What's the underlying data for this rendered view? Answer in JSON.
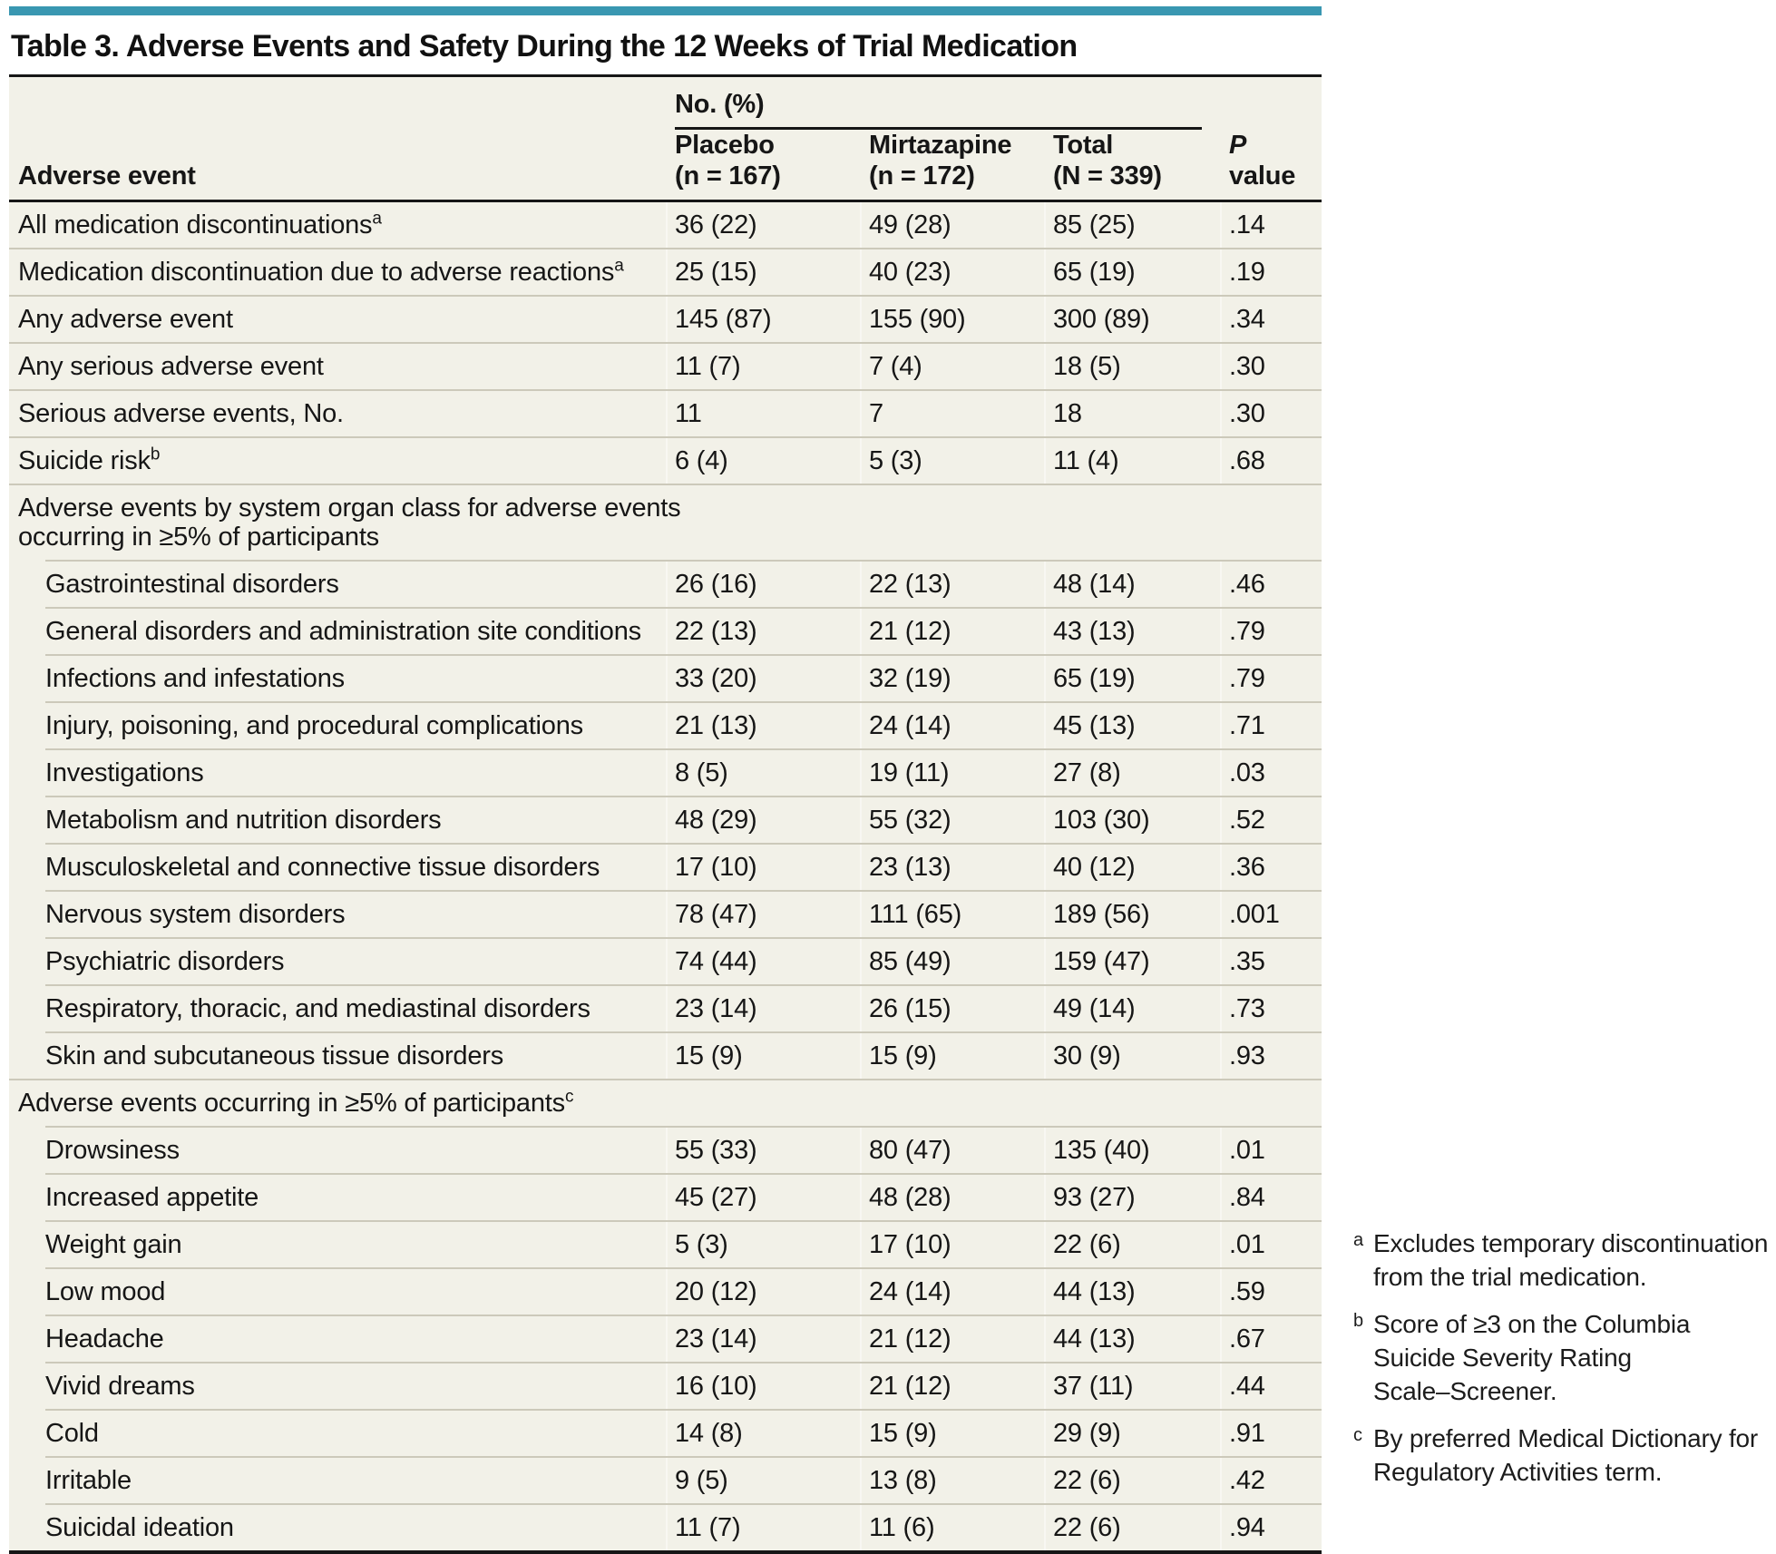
{
  "accent_color": "#3997b1",
  "title": "Table 3. Adverse Events and Safety During the 12 Weeks of Trial Medication",
  "table": {
    "spanner": "No. (%)",
    "row_header": "Adverse event",
    "columns": [
      "Placebo\n(n = 167)",
      "Mirtazapine\n(n = 172)",
      "Total\n(N = 339)"
    ],
    "p_column": {
      "italic": "P",
      "rest": " value"
    },
    "rows": [
      {
        "type": "row",
        "label": "All medication discontinuations",
        "sup": "a",
        "indent": false,
        "values": [
          "36 (22)",
          "49 (28)",
          "85 (25)",
          ".14"
        ]
      },
      {
        "type": "row",
        "label": "Medication discontinuation due to adverse reactions",
        "sup": "a",
        "indent": false,
        "values": [
          "25 (15)",
          "40 (23)",
          "65 (19)",
          ".19"
        ]
      },
      {
        "type": "row",
        "label": "Any adverse event",
        "sup": "",
        "indent": false,
        "values": [
          "145 (87)",
          "155 (90)",
          "300 (89)",
          ".34"
        ]
      },
      {
        "type": "row",
        "label": "Any serious adverse event",
        "sup": "",
        "indent": false,
        "values": [
          "11 (7)",
          "7 (4)",
          "18 (5)",
          ".30"
        ]
      },
      {
        "type": "row",
        "label": "Serious adverse events, No.",
        "sup": "",
        "indent": false,
        "values": [
          "11",
          "7",
          "18",
          ".30"
        ]
      },
      {
        "type": "row",
        "label": "Suicide risk",
        "sup": "b",
        "indent": false,
        "values": [
          "6 (4)",
          "5 (3)",
          "11 (4)",
          ".68"
        ]
      },
      {
        "type": "section",
        "label": "Adverse events by system organ class for adverse events\noccurring in ≥5% of participants",
        "sup": ""
      },
      {
        "type": "row",
        "label": "Gastrointestinal disorders",
        "sup": "",
        "indent": true,
        "values": [
          "26 (16)",
          "22 (13)",
          "48 (14)",
          ".46"
        ]
      },
      {
        "type": "row",
        "label": "General disorders and administration site conditions",
        "sup": "",
        "indent": true,
        "values": [
          "22 (13)",
          "21 (12)",
          "43 (13)",
          ".79"
        ]
      },
      {
        "type": "row",
        "label": "Infections and infestations",
        "sup": "",
        "indent": true,
        "values": [
          "33 (20)",
          "32 (19)",
          "65 (19)",
          ".79"
        ]
      },
      {
        "type": "row",
        "label": "Injury, poisoning, and procedural complications",
        "sup": "",
        "indent": true,
        "values": [
          "21 (13)",
          "24 (14)",
          "45 (13)",
          ".71"
        ]
      },
      {
        "type": "row",
        "label": "Investigations",
        "sup": "",
        "indent": true,
        "values": [
          "8 (5)",
          "19 (11)",
          "27 (8)",
          ".03"
        ]
      },
      {
        "type": "row",
        "label": "Metabolism and nutrition disorders",
        "sup": "",
        "indent": true,
        "values": [
          "48 (29)",
          "55 (32)",
          "103 (30)",
          ".52"
        ]
      },
      {
        "type": "row",
        "label": "Musculoskeletal and connective tissue disorders",
        "sup": "",
        "indent": true,
        "values": [
          "17 (10)",
          "23 (13)",
          "40 (12)",
          ".36"
        ]
      },
      {
        "type": "row",
        "label": "Nervous system disorders",
        "sup": "",
        "indent": true,
        "values": [
          "78 (47)",
          "111 (65)",
          "189 (56)",
          ".001"
        ]
      },
      {
        "type": "row",
        "label": "Psychiatric disorders",
        "sup": "",
        "indent": true,
        "values": [
          "74 (44)",
          "85 (49)",
          "159 (47)",
          ".35"
        ]
      },
      {
        "type": "row",
        "label": "Respiratory, thoracic, and mediastinal disorders",
        "sup": "",
        "indent": true,
        "values": [
          "23 (14)",
          "26 (15)",
          "49 (14)",
          ".73"
        ]
      },
      {
        "type": "row",
        "label": "Skin and subcutaneous tissue disorders",
        "sup": "",
        "indent": true,
        "values": [
          "15 (9)",
          "15 (9)",
          "30 (9)",
          ".93"
        ]
      },
      {
        "type": "section",
        "label": "Adverse events occurring in ≥5% of participants",
        "sup": "c"
      },
      {
        "type": "row",
        "label": "Drowsiness",
        "sup": "",
        "indent": true,
        "values": [
          "55 (33)",
          "80 (47)",
          "135 (40)",
          ".01"
        ]
      },
      {
        "type": "row",
        "label": "Increased appetite",
        "sup": "",
        "indent": true,
        "values": [
          "45 (27)",
          "48 (28)",
          "93 (27)",
          ".84"
        ]
      },
      {
        "type": "row",
        "label": "Weight gain",
        "sup": "",
        "indent": true,
        "values": [
          "5 (3)",
          "17 (10)",
          "22 (6)",
          ".01"
        ]
      },
      {
        "type": "row",
        "label": "Low mood",
        "sup": "",
        "indent": true,
        "values": [
          "20 (12)",
          "24 (14)",
          "44 (13)",
          ".59"
        ]
      },
      {
        "type": "row",
        "label": "Headache",
        "sup": "",
        "indent": true,
        "values": [
          "23 (14)",
          "21 (12)",
          "44 (13)",
          ".67"
        ]
      },
      {
        "type": "row",
        "label": "Vivid dreams",
        "sup": "",
        "indent": true,
        "values": [
          "16 (10)",
          "21 (12)",
          "37 (11)",
          ".44"
        ]
      },
      {
        "type": "row",
        "label": "Cold",
        "sup": "",
        "indent": true,
        "values": [
          "14 (8)",
          "15 (9)",
          "29 (9)",
          ".91"
        ]
      },
      {
        "type": "row",
        "label": "Irritable",
        "sup": "",
        "indent": true,
        "values": [
          "9 (5)",
          "13 (8)",
          "22 (6)",
          ".42"
        ]
      },
      {
        "type": "row",
        "label": "Suicidal ideation",
        "sup": "",
        "indent": true,
        "values": [
          "11 (7)",
          "11 (6)",
          "22 (6)",
          ".94"
        ]
      }
    ]
  },
  "footnotes": [
    {
      "marker": "a",
      "text": "Excludes temporary discontinuation\nfrom the trial medication."
    },
    {
      "marker": "b",
      "text": "Score of ≥3 on the Columbia\nSuicide Severity Rating\nScale–Screener."
    },
    {
      "marker": "c",
      "text": "By preferred Medical Dictionary for\nRegulatory Activities term."
    }
  ]
}
